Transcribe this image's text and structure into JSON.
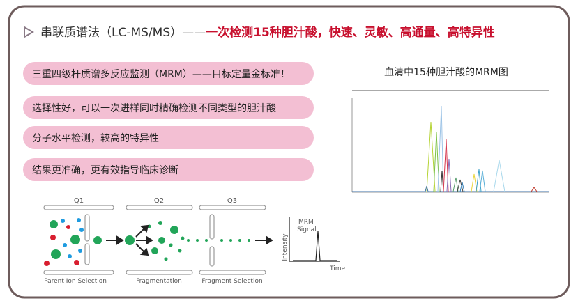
{
  "header": {
    "title": "串联质谱法（LC-MS/MS）——",
    "highlight": "一次检测15种胆汁酸，快速、灵敏、高通量、高特异性"
  },
  "bullets": [
    "三重四级杆质谱多反应监测（MRM）——目标定量金标准！",
    "选择性好，可以一次进样同时精确检测不同类型的胆汁酸",
    "分子水平检测，较高的特异性",
    "结果更准确，更有效指导临床诊断"
  ],
  "chromatogram": {
    "title": "血清中15种胆汁酸的MRM图"
  },
  "diagram": {
    "stages": [
      {
        "label": "Q1",
        "caption": "Parent Ion Selection"
      },
      {
        "label": "Q2",
        "caption": "Fragmentation"
      },
      {
        "label": "Q3",
        "caption": "Fragment Selection"
      }
    ],
    "signal": {
      "title_line1": "MRM",
      "title_line2": "Signal",
      "y_label": "Intensity",
      "x_label": "Time"
    }
  }
}
